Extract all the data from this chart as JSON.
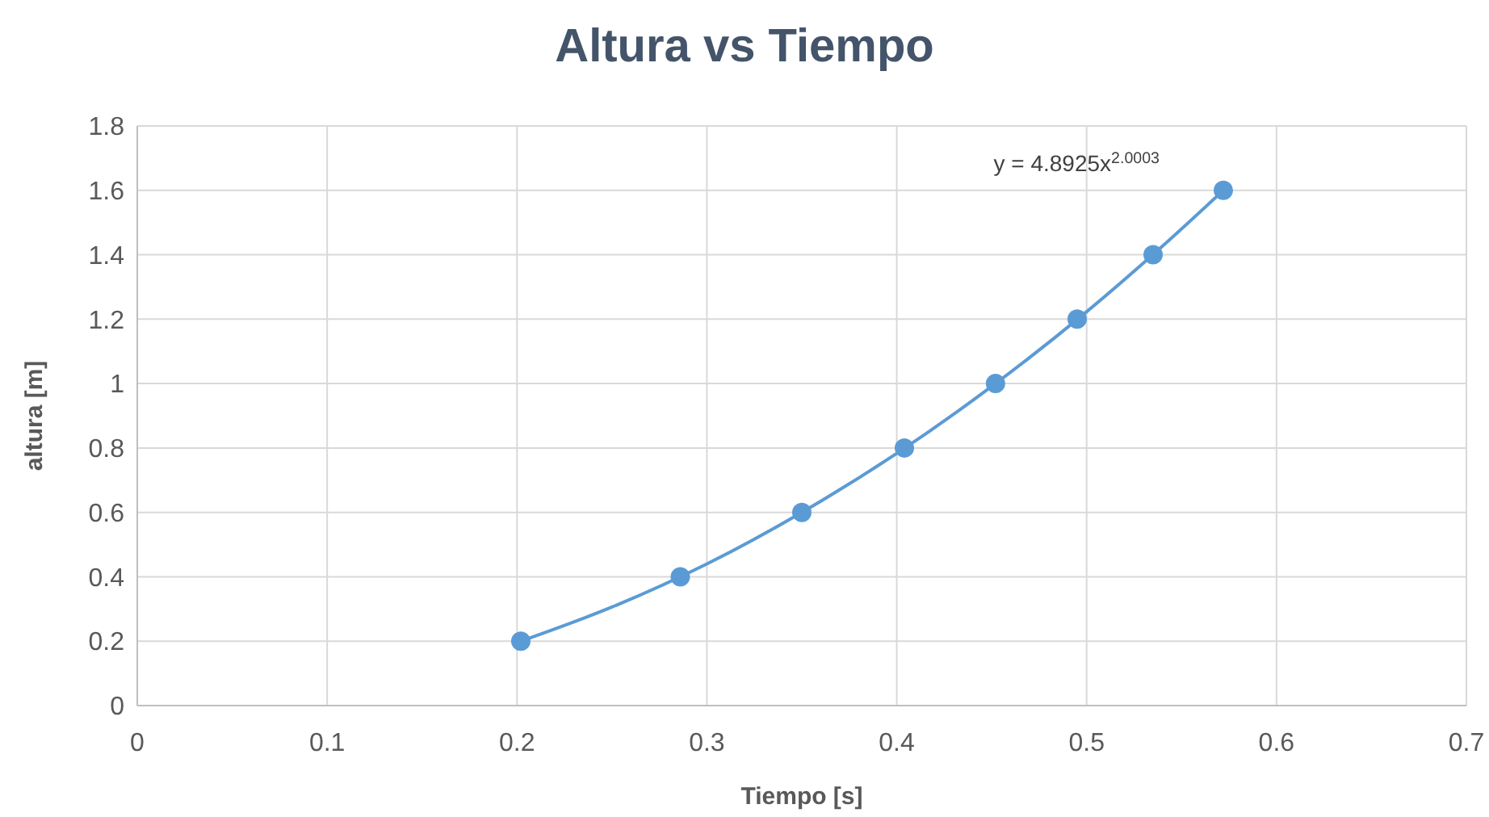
{
  "chart_data": {
    "type": "scatter",
    "title": "Altura vs Tiempo",
    "xlabel": "Tiempo [s]",
    "ylabel": "altura [m]",
    "xlim": [
      0,
      0.7
    ],
    "xticks": [
      0,
      0.1,
      0.2,
      0.3,
      0.4,
      0.5,
      0.6,
      0.7
    ],
    "ylim": [
      0,
      1.8
    ],
    "yticks": [
      0,
      0.2,
      0.4,
      0.6,
      0.8,
      1,
      1.2,
      1.4,
      1.6,
      1.8
    ],
    "grid": true,
    "series": [
      {
        "color": "#5b9bd5",
        "marker": "circle",
        "x": [
          0.202,
          0.286,
          0.35,
          0.404,
          0.452,
          0.495,
          0.535,
          0.572
        ],
        "values": [
          0.2,
          0.4,
          0.6,
          0.8,
          1,
          1.2,
          1.4,
          1.6
        ]
      },
      {
        "type": "line",
        "color": "#5b9bd5",
        "line_style": "solid",
        "x": [
          0.202,
          0.25,
          0.3,
          0.35,
          0.4,
          0.45,
          0.5,
          0.54,
          0.572
        ],
        "values": [
          0.2,
          0.306,
          0.44,
          0.6,
          0.783,
          0.991,
          1.223,
          1.427,
          1.6
        ]
      }
    ],
    "annotations": [
      "y = 4.8925x$^{2.0003}$"
    ]
  }
}
